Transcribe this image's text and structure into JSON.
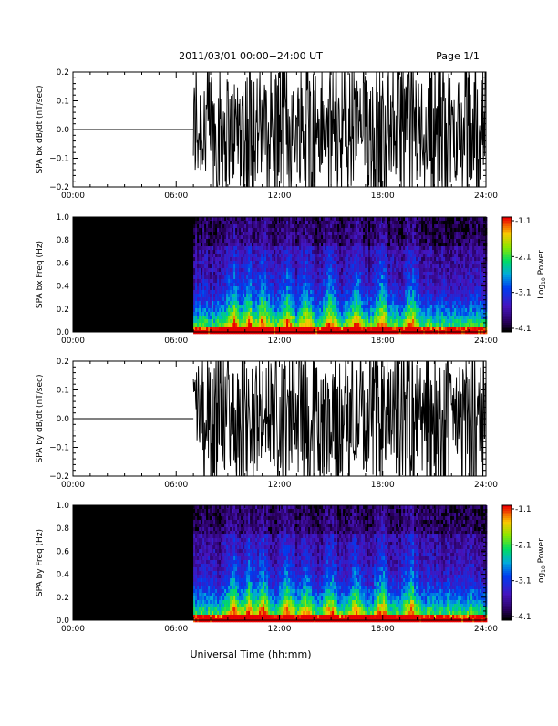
{
  "header": {
    "title": "2011/03/01   00:00−24:00 UT",
    "page": "Page 1/1"
  },
  "xlabel": "Universal Time (hh:mm)",
  "colorbar": {
    "label": "Log10 Power",
    "label_base": "Log",
    "label_sub": "10",
    "label_rest": " Power"
  },
  "chart_data": [
    {
      "type": "line",
      "ylabel": "SPA bx dB/dt (nT/sec)",
      "ylim": [
        -0.2,
        0.2
      ],
      "yticks": [
        -0.2,
        -0.1,
        0.0,
        0.1,
        0.2
      ],
      "ytick_labels": [
        "−0.2",
        "−0.1",
        "0.0",
        "0.1",
        "0.2"
      ],
      "xlim": [
        0,
        24
      ],
      "xticks": [
        0,
        6,
        12,
        18,
        24
      ],
      "xtick_labels": [
        "00:00",
        "06:00",
        "12:00",
        "18:00",
        "24:00"
      ],
      "quiet_until_hour": 7.0,
      "quiet_value": 0.0,
      "series": [
        {
          "x": [
            0,
            7.0
          ],
          "values": [
            0.0,
            0.0
          ]
        }
      ],
      "noise_amplitude_from_7h": 0.2
    },
    {
      "type": "heatmap",
      "ylabel": "SPA bx Freq (Hz)",
      "ylim": [
        0.0,
        1.0
      ],
      "yticks": [
        0.0,
        0.2,
        0.4,
        0.6,
        0.8,
        1.0
      ],
      "ytick_labels": [
        "0.0",
        "0.2",
        "0.4",
        "0.6",
        "0.8",
        "1.0"
      ],
      "xlim": [
        0,
        24
      ],
      "xticks": [
        0,
        6,
        12,
        18,
        24
      ],
      "xtick_labels": [
        "00:00",
        "06:00",
        "12:00",
        "18:00",
        "24:00"
      ],
      "data_starts_hour": 7.0,
      "clim": [
        -4.1,
        -1.1
      ],
      "colorbar_ticks": [
        "-1.1",
        "-2.1",
        "-3.1",
        "-4.1"
      ],
      "bright_bands_hours": [
        9.3,
        10.2,
        11.0,
        12.4,
        13.5,
        14.9,
        16.4,
        17.9,
        19.6
      ]
    },
    {
      "type": "line",
      "ylabel": "SPA by dB/dt (nT/sec)",
      "ylim": [
        -0.2,
        0.2
      ],
      "yticks": [
        -0.2,
        -0.1,
        0.0,
        0.1,
        0.2
      ],
      "ytick_labels": [
        "−0.2",
        "−0.1",
        "0.0",
        "0.1",
        "0.2"
      ],
      "xlim": [
        0,
        24
      ],
      "xticks": [
        0,
        6,
        12,
        18,
        24
      ],
      "xtick_labels": [
        "00:00",
        "06:00",
        "12:00",
        "18:00",
        "24:00"
      ],
      "quiet_until_hour": 7.0,
      "quiet_value": 0.0,
      "series": [
        {
          "x": [
            0,
            7.0
          ],
          "values": [
            0.0,
            0.0
          ]
        }
      ],
      "noise_amplitude_from_7h": 0.2
    },
    {
      "type": "heatmap",
      "ylabel": "SPA by Freq (Hz)",
      "ylim": [
        0.0,
        1.0
      ],
      "yticks": [
        0.0,
        0.2,
        0.4,
        0.6,
        0.8,
        1.0
      ],
      "ytick_labels": [
        "0.0",
        "0.2",
        "0.4",
        "0.6",
        "0.8",
        "1.0"
      ],
      "xlim": [
        0,
        24
      ],
      "xticks": [
        0,
        6,
        12,
        18,
        24
      ],
      "xtick_labels": [
        "00:00",
        "06:00",
        "12:00",
        "18:00",
        "24:00"
      ],
      "data_starts_hour": 7.0,
      "clim": [
        -4.1,
        -1.1
      ],
      "colorbar_ticks": [
        "-1.1",
        "-2.1",
        "-3.1",
        "-4.1"
      ],
      "bright_bands_hours": [
        9.3,
        10.2,
        11.0,
        12.4,
        13.5,
        14.9,
        16.4,
        17.9,
        19.6
      ]
    }
  ]
}
